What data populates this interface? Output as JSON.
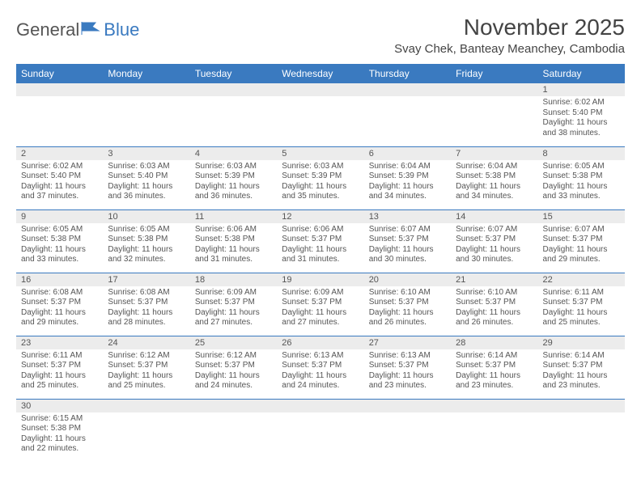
{
  "logo": {
    "general": "General",
    "blue": "Blue"
  },
  "title": "November 2025",
  "location": "Svay Chek, Banteay Meanchey, Cambodia",
  "colors": {
    "header_bg": "#3a7ac0",
    "header_fg": "#ffffff",
    "daynum_bg": "#ececec",
    "text": "#555555",
    "rule": "#3a7ac0"
  },
  "weekdays": [
    "Sunday",
    "Monday",
    "Tuesday",
    "Wednesday",
    "Thursday",
    "Friday",
    "Saturday"
  ],
  "weeks": [
    [
      {
        "n": "",
        "sr": "",
        "ss": "",
        "dl1": "",
        "dl2": ""
      },
      {
        "n": "",
        "sr": "",
        "ss": "",
        "dl1": "",
        "dl2": ""
      },
      {
        "n": "",
        "sr": "",
        "ss": "",
        "dl1": "",
        "dl2": ""
      },
      {
        "n": "",
        "sr": "",
        "ss": "",
        "dl1": "",
        "dl2": ""
      },
      {
        "n": "",
        "sr": "",
        "ss": "",
        "dl1": "",
        "dl2": ""
      },
      {
        "n": "",
        "sr": "",
        "ss": "",
        "dl1": "",
        "dl2": ""
      },
      {
        "n": "1",
        "sr": "Sunrise: 6:02 AM",
        "ss": "Sunset: 5:40 PM",
        "dl1": "Daylight: 11 hours",
        "dl2": "and 38 minutes."
      }
    ],
    [
      {
        "n": "2",
        "sr": "Sunrise: 6:02 AM",
        "ss": "Sunset: 5:40 PM",
        "dl1": "Daylight: 11 hours",
        "dl2": "and 37 minutes."
      },
      {
        "n": "3",
        "sr": "Sunrise: 6:03 AM",
        "ss": "Sunset: 5:40 PM",
        "dl1": "Daylight: 11 hours",
        "dl2": "and 36 minutes."
      },
      {
        "n": "4",
        "sr": "Sunrise: 6:03 AM",
        "ss": "Sunset: 5:39 PM",
        "dl1": "Daylight: 11 hours",
        "dl2": "and 36 minutes."
      },
      {
        "n": "5",
        "sr": "Sunrise: 6:03 AM",
        "ss": "Sunset: 5:39 PM",
        "dl1": "Daylight: 11 hours",
        "dl2": "and 35 minutes."
      },
      {
        "n": "6",
        "sr": "Sunrise: 6:04 AM",
        "ss": "Sunset: 5:39 PM",
        "dl1": "Daylight: 11 hours",
        "dl2": "and 34 minutes."
      },
      {
        "n": "7",
        "sr": "Sunrise: 6:04 AM",
        "ss": "Sunset: 5:38 PM",
        "dl1": "Daylight: 11 hours",
        "dl2": "and 34 minutes."
      },
      {
        "n": "8",
        "sr": "Sunrise: 6:05 AM",
        "ss": "Sunset: 5:38 PM",
        "dl1": "Daylight: 11 hours",
        "dl2": "and 33 minutes."
      }
    ],
    [
      {
        "n": "9",
        "sr": "Sunrise: 6:05 AM",
        "ss": "Sunset: 5:38 PM",
        "dl1": "Daylight: 11 hours",
        "dl2": "and 33 minutes."
      },
      {
        "n": "10",
        "sr": "Sunrise: 6:05 AM",
        "ss": "Sunset: 5:38 PM",
        "dl1": "Daylight: 11 hours",
        "dl2": "and 32 minutes."
      },
      {
        "n": "11",
        "sr": "Sunrise: 6:06 AM",
        "ss": "Sunset: 5:38 PM",
        "dl1": "Daylight: 11 hours",
        "dl2": "and 31 minutes."
      },
      {
        "n": "12",
        "sr": "Sunrise: 6:06 AM",
        "ss": "Sunset: 5:37 PM",
        "dl1": "Daylight: 11 hours",
        "dl2": "and 31 minutes."
      },
      {
        "n": "13",
        "sr": "Sunrise: 6:07 AM",
        "ss": "Sunset: 5:37 PM",
        "dl1": "Daylight: 11 hours",
        "dl2": "and 30 minutes."
      },
      {
        "n": "14",
        "sr": "Sunrise: 6:07 AM",
        "ss": "Sunset: 5:37 PM",
        "dl1": "Daylight: 11 hours",
        "dl2": "and 30 minutes."
      },
      {
        "n": "15",
        "sr": "Sunrise: 6:07 AM",
        "ss": "Sunset: 5:37 PM",
        "dl1": "Daylight: 11 hours",
        "dl2": "and 29 minutes."
      }
    ],
    [
      {
        "n": "16",
        "sr": "Sunrise: 6:08 AM",
        "ss": "Sunset: 5:37 PM",
        "dl1": "Daylight: 11 hours",
        "dl2": "and 29 minutes."
      },
      {
        "n": "17",
        "sr": "Sunrise: 6:08 AM",
        "ss": "Sunset: 5:37 PM",
        "dl1": "Daylight: 11 hours",
        "dl2": "and 28 minutes."
      },
      {
        "n": "18",
        "sr": "Sunrise: 6:09 AM",
        "ss": "Sunset: 5:37 PM",
        "dl1": "Daylight: 11 hours",
        "dl2": "and 27 minutes."
      },
      {
        "n": "19",
        "sr": "Sunrise: 6:09 AM",
        "ss": "Sunset: 5:37 PM",
        "dl1": "Daylight: 11 hours",
        "dl2": "and 27 minutes."
      },
      {
        "n": "20",
        "sr": "Sunrise: 6:10 AM",
        "ss": "Sunset: 5:37 PM",
        "dl1": "Daylight: 11 hours",
        "dl2": "and 26 minutes."
      },
      {
        "n": "21",
        "sr": "Sunrise: 6:10 AM",
        "ss": "Sunset: 5:37 PM",
        "dl1": "Daylight: 11 hours",
        "dl2": "and 26 minutes."
      },
      {
        "n": "22",
        "sr": "Sunrise: 6:11 AM",
        "ss": "Sunset: 5:37 PM",
        "dl1": "Daylight: 11 hours",
        "dl2": "and 25 minutes."
      }
    ],
    [
      {
        "n": "23",
        "sr": "Sunrise: 6:11 AM",
        "ss": "Sunset: 5:37 PM",
        "dl1": "Daylight: 11 hours",
        "dl2": "and 25 minutes."
      },
      {
        "n": "24",
        "sr": "Sunrise: 6:12 AM",
        "ss": "Sunset: 5:37 PM",
        "dl1": "Daylight: 11 hours",
        "dl2": "and 25 minutes."
      },
      {
        "n": "25",
        "sr": "Sunrise: 6:12 AM",
        "ss": "Sunset: 5:37 PM",
        "dl1": "Daylight: 11 hours",
        "dl2": "and 24 minutes."
      },
      {
        "n": "26",
        "sr": "Sunrise: 6:13 AM",
        "ss": "Sunset: 5:37 PM",
        "dl1": "Daylight: 11 hours",
        "dl2": "and 24 minutes."
      },
      {
        "n": "27",
        "sr": "Sunrise: 6:13 AM",
        "ss": "Sunset: 5:37 PM",
        "dl1": "Daylight: 11 hours",
        "dl2": "and 23 minutes."
      },
      {
        "n": "28",
        "sr": "Sunrise: 6:14 AM",
        "ss": "Sunset: 5:37 PM",
        "dl1": "Daylight: 11 hours",
        "dl2": "and 23 minutes."
      },
      {
        "n": "29",
        "sr": "Sunrise: 6:14 AM",
        "ss": "Sunset: 5:37 PM",
        "dl1": "Daylight: 11 hours",
        "dl2": "and 23 minutes."
      }
    ],
    [
      {
        "n": "30",
        "sr": "Sunrise: 6:15 AM",
        "ss": "Sunset: 5:38 PM",
        "dl1": "Daylight: 11 hours",
        "dl2": "and 22 minutes."
      },
      {
        "n": "",
        "sr": "",
        "ss": "",
        "dl1": "",
        "dl2": ""
      },
      {
        "n": "",
        "sr": "",
        "ss": "",
        "dl1": "",
        "dl2": ""
      },
      {
        "n": "",
        "sr": "",
        "ss": "",
        "dl1": "",
        "dl2": ""
      },
      {
        "n": "",
        "sr": "",
        "ss": "",
        "dl1": "",
        "dl2": ""
      },
      {
        "n": "",
        "sr": "",
        "ss": "",
        "dl1": "",
        "dl2": ""
      },
      {
        "n": "",
        "sr": "",
        "ss": "",
        "dl1": "",
        "dl2": ""
      }
    ]
  ]
}
